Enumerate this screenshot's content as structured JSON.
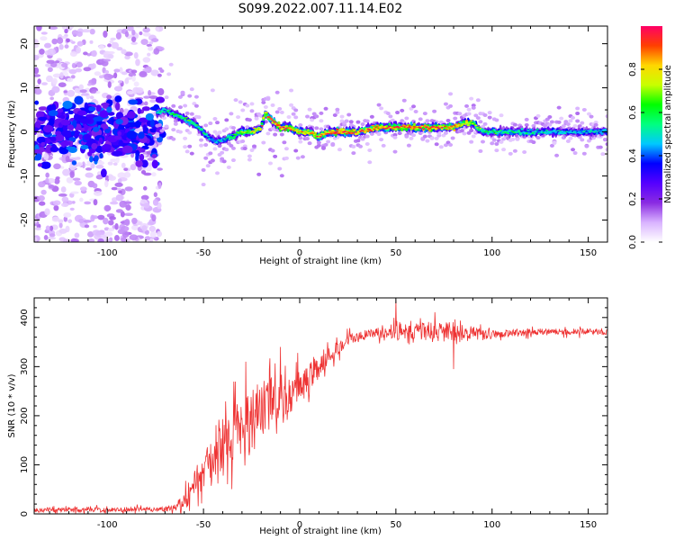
{
  "title": "S099.2022.007.11.14.E02",
  "chart_data": [
    {
      "type": "heatmap",
      "xlabel": "Height of straight line (km)",
      "ylabel": "Frequency (Hz)",
      "xlim": [
        -138,
        160
      ],
      "ylim": [
        -25,
        24
      ],
      "xticks": [
        -100,
        -50,
        0,
        50,
        100,
        150
      ],
      "xtick_labels": [
        "-100",
        "-50",
        "0",
        "50",
        "100",
        "150"
      ],
      "yticks": [
        -20,
        -10,
        0,
        10,
        20
      ],
      "ytick_labels": [
        "-20",
        "-10",
        "0",
        "10",
        "20"
      ],
      "colorbar": {
        "label": "Normalized spectral amplitude",
        "range": [
          0,
          1
        ],
        "ticks": [
          0.0,
          0.2,
          0.4,
          0.6,
          0.8
        ],
        "tick_labels": [
          "0.0",
          "0.2",
          "0.4",
          "0.6",
          "0.8"
        ],
        "colormap": [
          "#ffffff",
          "#d9b3ff",
          "#8a2be2",
          "#5500ff",
          "#0000ff",
          "#00c8ff",
          "#00ff80",
          "#00ff00",
          "#c8ff00",
          "#ffd700",
          "#ff4000",
          "#ff0066"
        ]
      },
      "ridge": {
        "x": [
          -75,
          -70,
          -60,
          -55,
          -50,
          -45,
          -40,
          -35,
          -30,
          -25,
          -20,
          -18,
          -15,
          -10,
          -5,
          0,
          5,
          10,
          15,
          20,
          30,
          40,
          50,
          60,
          70,
          80,
          85,
          90,
          95,
          100,
          110,
          120,
          130,
          140,
          150,
          160
        ],
        "freq": [
          4,
          5,
          3,
          2,
          0,
          -2,
          -2,
          -1,
          0,
          0,
          1,
          4,
          3,
          1,
          1,
          0,
          0,
          -1,
          0,
          0,
          0,
          1,
          1,
          1,
          1,
          1,
          2,
          2,
          0,
          0,
          0,
          0,
          0,
          0,
          0,
          0
        ],
        "amplitude": [
          0.5,
          0.55,
          0.6,
          0.6,
          0.55,
          0.45,
          0.5,
          0.6,
          0.7,
          0.75,
          0.8,
          0.85,
          0.9,
          0.95,
          0.9,
          0.8,
          0.85,
          0.9,
          0.95,
          1.0,
          0.9,
          0.95,
          0.9,
          0.95,
          0.9,
          0.9,
          0.8,
          0.75,
          0.6,
          0.6,
          0.55,
          0.55,
          0.5,
          0.5,
          0.5,
          0.5
        ]
      }
    },
    {
      "type": "line",
      "xlabel": "Height of straight line (km)",
      "ylabel": "SNR (10 * v/v)",
      "xlim": [
        -138,
        160
      ],
      "ylim": [
        0,
        440
      ],
      "xticks": [
        -100,
        -50,
        0,
        50,
        100,
        150
      ],
      "xtick_labels": [
        "-100",
        "-50",
        "0",
        "50",
        "100",
        "150"
      ],
      "yticks": [
        0,
        100,
        200,
        300,
        400
      ],
      "ytick_labels": [
        "0",
        "100",
        "200",
        "300",
        "400"
      ],
      "series": [
        {
          "color": "#ee3333",
          "x": [
            -138,
            -120,
            -100,
            -80,
            -70,
            -65,
            -60,
            -58,
            -55,
            -50,
            -45,
            -40,
            -35,
            -30,
            -28,
            -25,
            -20,
            -15,
            -12,
            -10,
            -8,
            -5,
            0,
            5,
            10,
            15,
            20,
            25,
            30,
            35,
            40,
            45,
            48,
            50,
            55,
            60,
            65,
            70,
            75,
            80,
            85,
            90,
            95,
            100,
            110,
            120,
            130,
            140,
            150,
            160
          ],
          "mean": [
            8,
            9,
            8,
            9,
            10,
            15,
            25,
            40,
            60,
            90,
            110,
            140,
            160,
            180,
            200,
            190,
            210,
            230,
            240,
            245,
            220,
            240,
            260,
            280,
            300,
            320,
            340,
            355,
            360,
            365,
            368,
            370,
            372,
            375,
            372,
            370,
            372,
            372,
            370,
            370,
            368,
            368,
            365,
            365,
            368,
            370,
            372,
            370,
            372,
            370
          ],
          "noise": [
            8,
            8,
            8,
            8,
            8,
            15,
            30,
            40,
            50,
            60,
            70,
            80,
            90,
            100,
            110,
            110,
            100,
            90,
            80,
            80,
            70,
            60,
            60,
            50,
            40,
            30,
            25,
            20,
            18,
            18,
            18,
            18,
            25,
            35,
            30,
            30,
            30,
            35,
            35,
            35,
            30,
            25,
            20,
            15,
            12,
            12,
            10,
            10,
            10,
            10
          ],
          "spikes": [
            {
              "x": -28,
              "y": 310
            },
            {
              "x": -10,
              "y": 340
            },
            {
              "x": 50,
              "y": 435
            },
            {
              "x": 80,
              "y": 295
            }
          ]
        }
      ]
    }
  ]
}
